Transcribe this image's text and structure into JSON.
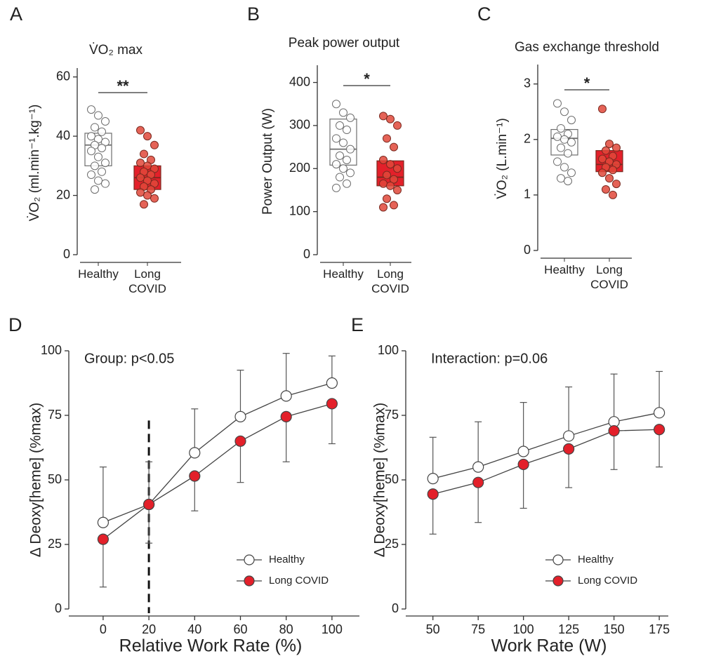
{
  "chart_data": [
    {
      "type": "box",
      "panel_label": "A",
      "title": "V̇O₂ max",
      "y_label": "V̇O₂ (ml.min⁻¹.kg⁻¹)",
      "annotation": "**",
      "categories": [
        "Healthy",
        "Long COVID"
      ],
      "boxes": [
        {
          "color": "#ffffff",
          "edge": "#6d6d6d",
          "q1": 30,
          "median": 37,
          "q3": 41,
          "points": [
            49,
            47,
            45,
            43,
            41.5,
            40,
            39,
            38,
            37,
            36,
            35,
            33,
            31,
            30,
            28,
            27,
            25,
            24,
            22
          ]
        },
        {
          "color": "#e3202a",
          "edge": "#7a2a20",
          "q1": 22,
          "median": 26,
          "q3": 30,
          "points": [
            42,
            40,
            37,
            34,
            32,
            31,
            30,
            29,
            28,
            27,
            26,
            25,
            24,
            23,
            22,
            21,
            20,
            19,
            17
          ]
        }
      ],
      "ylim": [
        0,
        63
      ],
      "yticks": [
        0,
        20,
        40,
        60
      ]
    },
    {
      "type": "box",
      "panel_label": "B",
      "title": "Peak power output",
      "y_label": "Power Output (W)",
      "annotation": "*",
      "categories": [
        "Healthy",
        "Long COVID"
      ],
      "boxes": [
        {
          "color": "#ffffff",
          "edge": "#6d6d6d",
          "q1": 208,
          "median": 245,
          "q3": 315,
          "points": [
            350,
            330,
            318,
            300,
            290,
            270,
            260,
            245,
            230,
            220,
            210,
            200,
            190,
            180,
            165,
            155
          ]
        },
        {
          "color": "#e3202a",
          "edge": "#7a2a20",
          "q1": 160,
          "median": 180,
          "q3": 218,
          "points": [
            322,
            315,
            300,
            270,
            250,
            220,
            210,
            200,
            185,
            175,
            165,
            160,
            150,
            130,
            115,
            110
          ]
        }
      ],
      "ylim": [
        0,
        440
      ],
      "yticks": [
        0,
        100,
        200,
        300,
        400
      ]
    },
    {
      "type": "box",
      "panel_label": "C",
      "title": "Gas exchange threshold",
      "y_label": "V̇O₂ (L.min⁻¹)",
      "annotation": "*",
      "categories": [
        "Healthy",
        "Long COVID"
      ],
      "boxes": [
        {
          "color": "#ffffff",
          "edge": "#6d6d6d",
          "q1": 1.72,
          "median": 2.02,
          "q3": 2.18,
          "points": [
            2.65,
            2.5,
            2.35,
            2.2,
            2.1,
            2.05,
            2.0,
            1.95,
            1.85,
            1.75,
            1.6,
            1.5,
            1.4,
            1.3,
            1.25
          ]
        },
        {
          "color": "#e3202a",
          "edge": "#7a2a20",
          "q1": 1.42,
          "median": 1.55,
          "q3": 1.8,
          "points": [
            2.55,
            1.92,
            1.85,
            1.8,
            1.7,
            1.65,
            1.6,
            1.55,
            1.5,
            1.45,
            1.4,
            1.3,
            1.2,
            1.1,
            1.0
          ]
        }
      ],
      "ylim": [
        0,
        3.35
      ],
      "yticks": [
        0,
        1,
        2,
        3
      ]
    },
    {
      "type": "line",
      "panel_label": "D",
      "annotation": "Group: p<0.05",
      "x_label": "Relative Work Rate (%)",
      "y_label": "Δ Deoxy[heme] (%max)",
      "x": [
        0,
        20,
        40,
        60,
        80,
        100
      ],
      "series": [
        {
          "name": "Healthy",
          "color": "#ffffff",
          "values": [
            33.5,
            40.5,
            60.5,
            74.5,
            82.5,
            87.5
          ],
          "errors": [
            21.5,
            16.5,
            17,
            18,
            16.5,
            10.5
          ],
          "error_direction": "up"
        },
        {
          "name": "Long COVID",
          "color": "#e3202a",
          "values": [
            27,
            40.5,
            51.5,
            65,
            74.5,
            79.5
          ],
          "errors": [
            18.5,
            15,
            13.5,
            16,
            17.5,
            15.5
          ],
          "error_direction": "down"
        }
      ],
      "vline": 20,
      "legend": "lower right",
      "xlim": [
        -15,
        112
      ],
      "xticks": [
        0,
        20,
        40,
        60,
        80,
        100
      ],
      "ylim": [
        0,
        100
      ],
      "yticks": [
        0,
        25,
        50,
        75,
        100
      ]
    },
    {
      "type": "line",
      "panel_label": "E",
      "annotation": "Interaction: p=0.06",
      "x_label": "Work Rate (W)",
      "y_label": "Δ Deoxy[heme] (%max)",
      "x": [
        50,
        75,
        100,
        125,
        150,
        175
      ],
      "series": [
        {
          "name": "Healthy",
          "color": "#ffffff",
          "values": [
            50.5,
            55,
            61,
            67,
            72.5,
            76
          ],
          "errors": [
            16,
            17.5,
            19,
            19,
            18.5,
            16
          ],
          "error_direction": "up"
        },
        {
          "name": "Long COVID",
          "color": "#e3202a",
          "values": [
            44.5,
            49,
            56,
            62,
            69,
            69.5
          ],
          "errors": [
            15.5,
            15.5,
            17,
            15,
            15,
            14.5
          ],
          "error_direction": "down"
        }
      ],
      "legend": "lower right",
      "xlim": [
        35,
        180
      ],
      "xticks": [
        50,
        75,
        100,
        125,
        150,
        175
      ],
      "ylim": [
        0,
        100
      ],
      "yticks": [
        0,
        25,
        50,
        75,
        100
      ]
    }
  ]
}
